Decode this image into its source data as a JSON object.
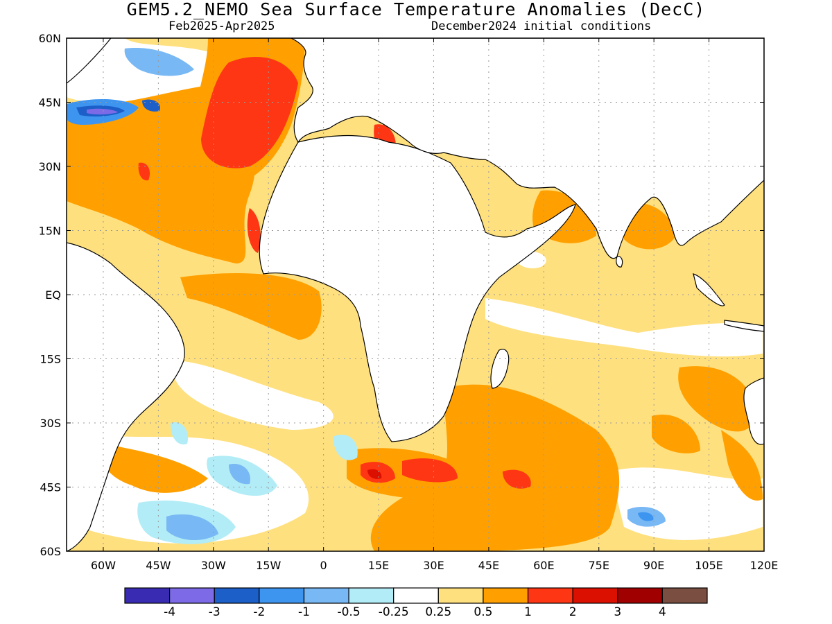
{
  "title": "GEM5.2_NEMO Sea Surface Temperature Anomalies (DecC)",
  "subtitle_left": "Feb2025-Apr2025",
  "subtitle_right": "December2024 initial conditions",
  "map": {
    "lon_range": [
      -70,
      120
    ],
    "lat_range": [
      -60,
      60
    ],
    "lon_ticks": [
      -60,
      -45,
      -30,
      -15,
      0,
      15,
      30,
      45,
      60,
      75,
      90,
      105,
      120
    ],
    "lon_tick_labels": [
      "60W",
      "45W",
      "30W",
      "15W",
      "0",
      "15E",
      "30E",
      "45E",
      "60E",
      "75E",
      "90E",
      "105E",
      "120E"
    ],
    "lat_ticks": [
      60,
      45,
      30,
      15,
      0,
      -15,
      -30,
      -45,
      -60
    ],
    "lat_tick_labels": [
      "60N",
      "45N",
      "30N",
      "15N",
      "EQ",
      "15S",
      "30S",
      "45S",
      "60S"
    ],
    "grid": "dotted"
  },
  "colorbar": {
    "colors": [
      "#3a2cb2",
      "#7c6ae6",
      "#1c5fc8",
      "#3d95f0",
      "#78b8f4",
      "#b2ecf6",
      "#ffffff",
      "#ffe07e",
      "#ffa000",
      "#ff3614",
      "#dc1000",
      "#a00000",
      "#7a4e40"
    ],
    "labels": [
      "-4",
      "-3",
      "-2",
      "-1",
      "-0.5",
      "-0.25",
      "0.25",
      "0.5",
      "1",
      "2",
      "3",
      "4"
    ]
  }
}
